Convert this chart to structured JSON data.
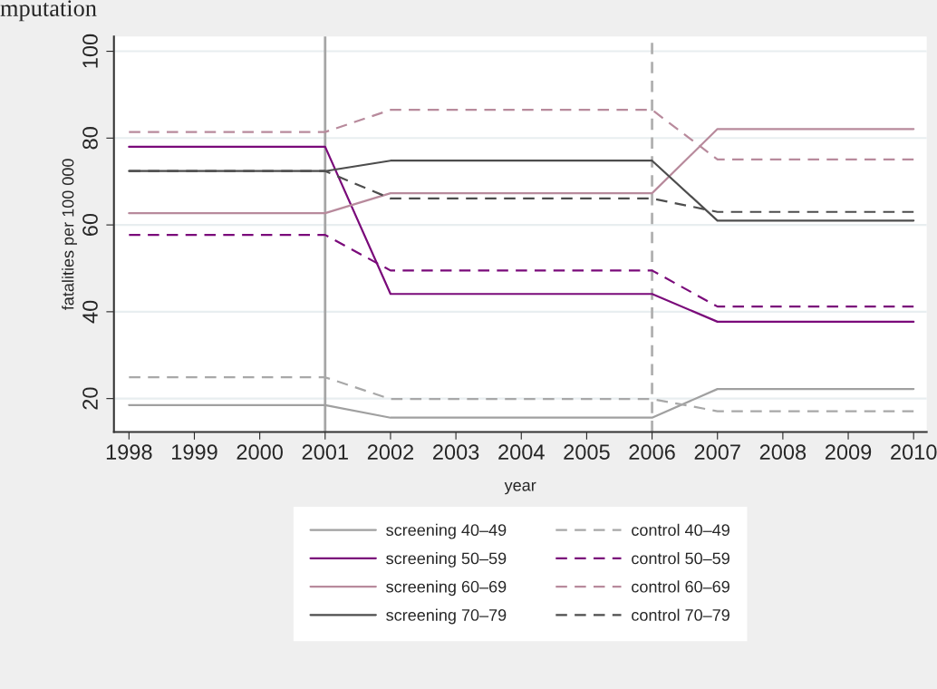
{
  "chart_data": {
    "type": "line",
    "xlabel": "year",
    "ylabel": "fatalities per 100 000",
    "annotations": [
      "mputation"
    ],
    "x": [
      1998,
      1999,
      2000,
      2001,
      2002,
      2003,
      2004,
      2005,
      2006,
      2007,
      2008,
      2009,
      2010
    ],
    "xlim": [
      1997.77,
      2010.2
    ],
    "xticks": [
      1998,
      1999,
      2000,
      2001,
      2002,
      2003,
      2004,
      2005,
      2006,
      2007,
      2008,
      2009,
      2010
    ],
    "ylim": [
      12.3,
      103.4
    ],
    "yticks": [
      20,
      40,
      60,
      80,
      100
    ],
    "grid": "y",
    "legend": "bottom",
    "marker": "none",
    "ref_lines": [
      {
        "axis": "x",
        "value": 2001,
        "color": "#a6a6a6",
        "line_style": "solid"
      },
      {
        "axis": "x",
        "value": 2006,
        "color": "#b0b0b0",
        "line_style": "dashed"
      }
    ],
    "series": [
      {
        "name": "screening 40–49",
        "color": "#a0a0a0",
        "line_style": "solid",
        "values": [
          18.5,
          18.5,
          18.5,
          18.5,
          15.6,
          15.6,
          15.6,
          15.6,
          15.6,
          22.2,
          22.2,
          22.2,
          22.2
        ]
      },
      {
        "name": "screening 50–59",
        "color": "#7a0a7a",
        "line_style": "solid",
        "values": [
          78.0,
          78.0,
          78.0,
          78.0,
          44.1,
          44.1,
          44.1,
          44.1,
          44.1,
          37.7,
          37.7,
          37.7,
          37.7
        ]
      },
      {
        "name": "screening 60–69",
        "color": "#b88a9c",
        "line_style": "solid",
        "values": [
          62.7,
          62.7,
          62.7,
          62.7,
          67.3,
          67.3,
          67.3,
          67.3,
          67.3,
          82.1,
          82.1,
          82.1,
          82.1
        ]
      },
      {
        "name": "screening 70–79",
        "color": "#4d4d4d",
        "line_style": "solid",
        "values": [
          72.4,
          72.4,
          72.4,
          72.4,
          74.8,
          74.8,
          74.8,
          74.8,
          74.8,
          61.0,
          61.0,
          61.0,
          61.0
        ]
      },
      {
        "name": "control 40–49",
        "color": "#a8a8a8",
        "line_style": "dashed",
        "values": [
          24.9,
          24.9,
          24.9,
          24.9,
          19.9,
          19.9,
          19.9,
          19.9,
          19.9,
          17.1,
          17.1,
          17.1,
          17.1
        ]
      },
      {
        "name": "control 50–59",
        "color": "#7a0a7a",
        "line_style": "dashed",
        "values": [
          57.7,
          57.7,
          57.7,
          57.7,
          49.5,
          49.5,
          49.5,
          49.5,
          49.5,
          41.2,
          41.2,
          41.2,
          41.2
        ]
      },
      {
        "name": "control 60–69",
        "color": "#b88a9c",
        "line_style": "dashed",
        "values": [
          81.4,
          81.4,
          81.4,
          81.4,
          86.5,
          86.5,
          86.5,
          86.5,
          86.5,
          75.1,
          75.1,
          75.1,
          75.1
        ]
      },
      {
        "name": "control 70–79",
        "color": "#4d4d4d",
        "line_style": "dashed",
        "values": [
          72.4,
          72.4,
          72.4,
          72.4,
          66.1,
          66.1,
          66.1,
          66.1,
          66.1,
          63.0,
          63.0,
          63.0,
          63.0
        ]
      }
    ]
  }
}
